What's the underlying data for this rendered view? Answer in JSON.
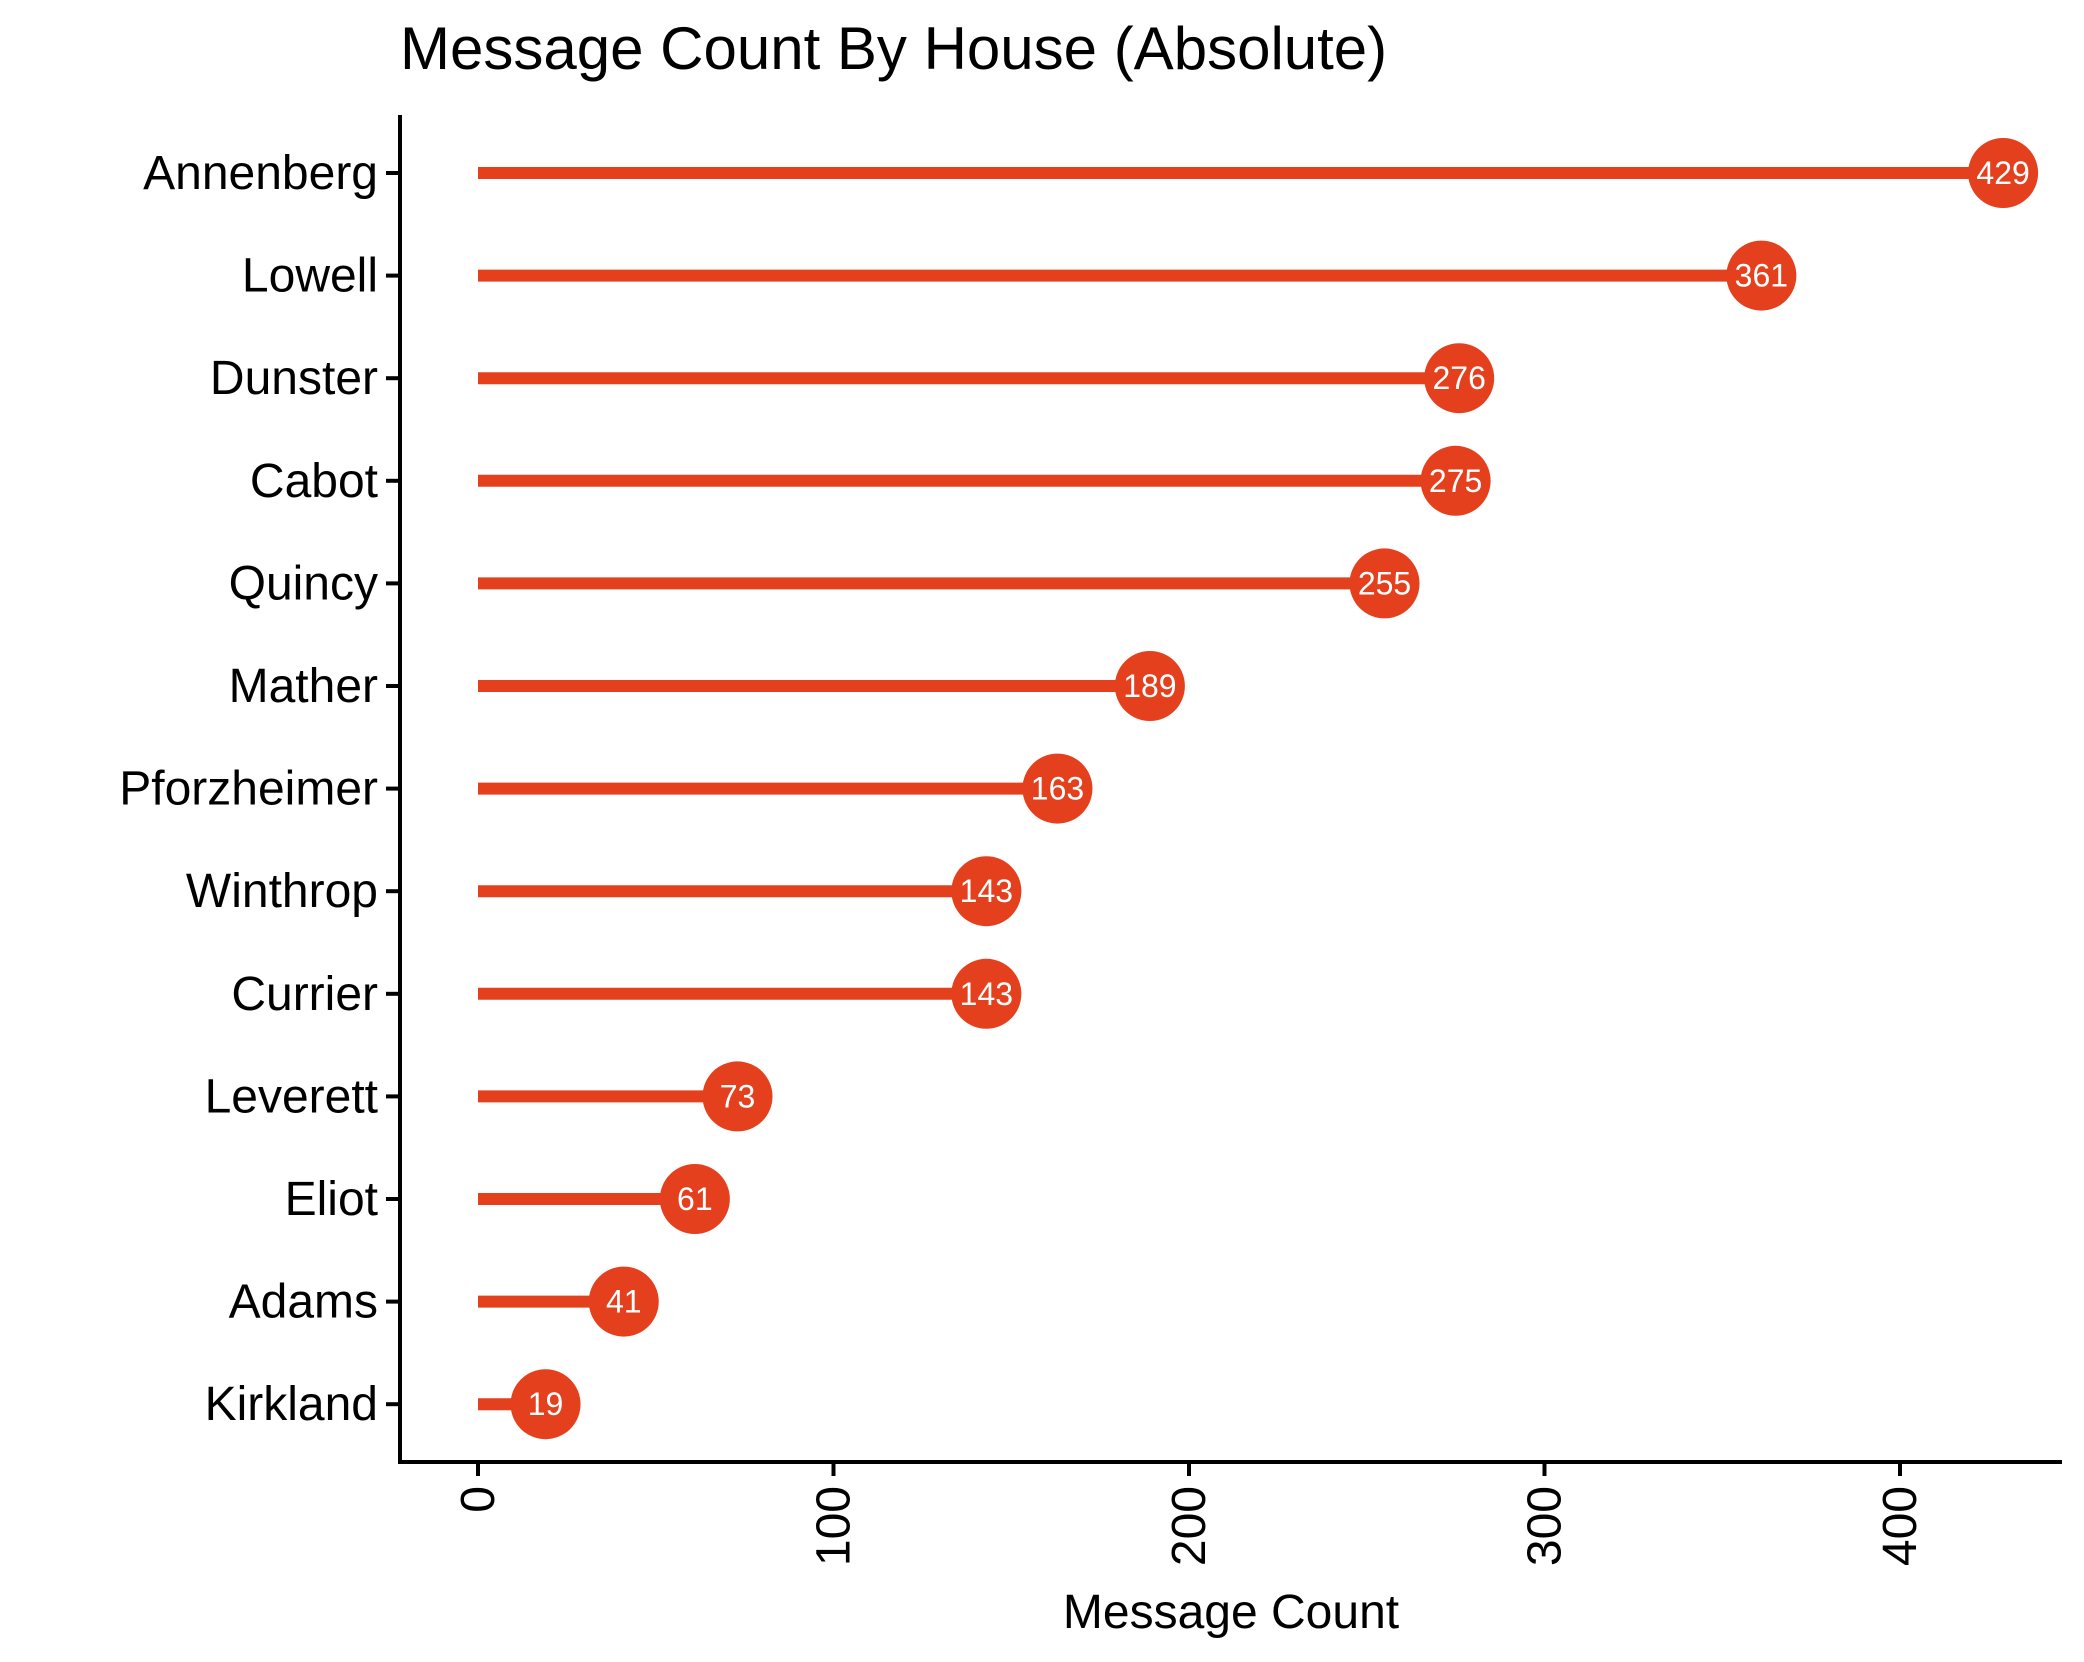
{
  "chart_data": {
    "type": "lollipop",
    "title": "Message Count By House (Absolute)",
    "xlabel": "Message Count",
    "ylabel": "",
    "xlim": [
      0,
      450
    ],
    "xticks": [
      0,
      100,
      200,
      300,
      400
    ],
    "grid": false,
    "legend": "none",
    "color": "#e5401e",
    "label_color": "#ffffff",
    "categories": [
      "Annenberg",
      "Lowell",
      "Dunster",
      "Cabot",
      "Quincy",
      "Mather",
      "Pforzheimer",
      "Winthrop",
      "Currier",
      "Leverett",
      "Eliot",
      "Adams",
      "Kirkland"
    ],
    "values": [
      429,
      361,
      276,
      275,
      255,
      189,
      163,
      143,
      143,
      73,
      61,
      41,
      19
    ]
  }
}
